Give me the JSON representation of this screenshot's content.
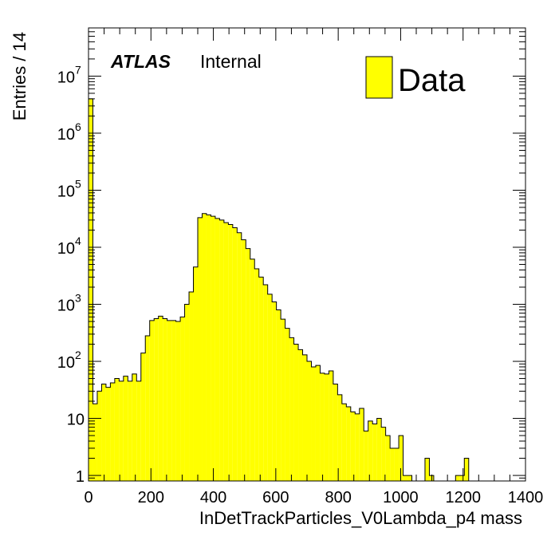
{
  "chart_data": {
    "type": "histogram",
    "xlabel": "InDetTrackParticles_V0Lambda_p4 mass",
    "ylabel": "Entries / 14",
    "xlim": [
      0,
      1400
    ],
    "ylim": [
      0.8,
      70000000
    ],
    "yscale": "log",
    "bin_width": 14,
    "x_ticks": [
      0,
      200,
      400,
      600,
      800,
      1000,
      1200,
      1400
    ],
    "x_tick_labels": [
      "0",
      "200",
      "400",
      "600",
      "800",
      "1000",
      "1200",
      "1400"
    ],
    "y_ticks": [
      {
        "value": 1,
        "base": "1",
        "exp": ""
      },
      {
        "value": 10,
        "base": "10",
        "exp": ""
      },
      {
        "value": 100,
        "base": "10",
        "exp": "2"
      },
      {
        "value": 1000,
        "base": "10",
        "exp": "3"
      },
      {
        "value": 10000,
        "base": "10",
        "exp": "4"
      },
      {
        "value": 100000,
        "base": "10",
        "exp": "5"
      },
      {
        "value": 1000000,
        "base": "10",
        "exp": "6"
      },
      {
        "value": 10000000,
        "base": "10",
        "exp": "7"
      }
    ],
    "legend": {
      "entries": [
        {
          "label": "Data",
          "color": "#ffff00"
        }
      ],
      "position": "top-right"
    },
    "series": [
      {
        "name": "Data",
        "color": "#ffff00",
        "edge_color": "#000000",
        "values": [
          4000000,
          18,
          30,
          40,
          35,
          42,
          50,
          45,
          55,
          45,
          60,
          45,
          140,
          280,
          520,
          560,
          620,
          560,
          520,
          520,
          500,
          600,
          1000,
          1650,
          4500,
          33000,
          39000,
          37000,
          35000,
          32000,
          30000,
          27000,
          25000,
          22000,
          18000,
          13500,
          9500,
          6200,
          4200,
          3000,
          2200,
          1500,
          1100,
          800,
          550,
          380,
          260,
          200,
          160,
          130,
          100,
          80,
          85,
          62,
          60,
          68,
          40,
          26,
          18,
          16,
          13,
          12,
          15,
          6,
          9,
          8,
          10,
          7,
          5,
          3,
          3,
          5,
          1,
          1,
          0,
          0,
          0,
          2,
          1,
          0,
          0,
          0,
          0,
          0,
          1,
          1,
          2,
          0,
          0,
          0,
          0,
          0,
          0,
          0,
          0,
          0,
          0,
          0,
          0,
          0
        ]
      }
    ],
    "annotations": [
      {
        "text": "ATLAS",
        "style": "bold-italic"
      },
      {
        "text": "Internal",
        "style": "normal"
      }
    ]
  }
}
